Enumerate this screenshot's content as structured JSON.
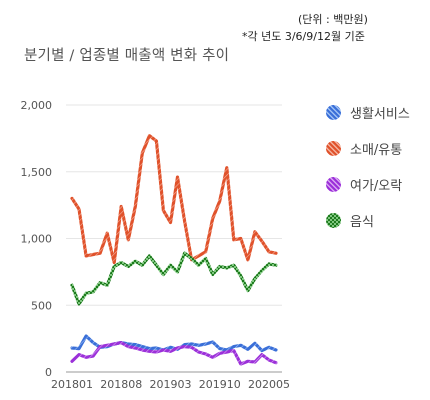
{
  "header": {
    "unit_note": "(단위 : 백만원)",
    "quarter_note": "*각 년도 3/6/9/12월 기준"
  },
  "chart_data": {
    "type": "line",
    "title": "분기별 / 업종별 매출액 변화 추이",
    "xlabel": "",
    "ylabel": "",
    "ylim": [
      0,
      2000
    ],
    "yticks": [
      0,
      500,
      1000,
      1500,
      2000
    ],
    "ytick_labels": [
      "0",
      "500",
      "1,000",
      "1,500",
      "2,000"
    ],
    "x_tick_labels": [
      "201801",
      "201808",
      "201903",
      "201910",
      "202005"
    ],
    "x_tick_index": [
      0,
      7,
      14,
      21,
      28
    ],
    "x_count": 30,
    "grid": true,
    "legend_position": "right",
    "series": [
      {
        "name": "생활서비스",
        "color": "#3a6fd8",
        "values": [
          180,
          175,
          270,
          220,
          185,
          190,
          210,
          220,
          210,
          205,
          190,
          175,
          180,
          165,
          185,
          170,
          205,
          210,
          200,
          210,
          225,
          175,
          165,
          190,
          200,
          170,
          215,
          160,
          185,
          165
        ]
      },
      {
        "name": "소매/유통",
        "color": "#e0522b",
        "values": [
          1300,
          1220,
          870,
          880,
          890,
          1040,
          820,
          1240,
          990,
          1240,
          1640,
          1770,
          1730,
          1210,
          1120,
          1460,
          1130,
          840,
          870,
          900,
          1150,
          1280,
          1530,
          990,
          1000,
          840,
          1050,
          980,
          900,
          890
        ]
      },
      {
        "name": "여가/오락",
        "color": "#9b30d9",
        "values": [
          80,
          130,
          110,
          120,
          190,
          200,
          210,
          220,
          190,
          180,
          165,
          155,
          150,
          165,
          155,
          180,
          190,
          185,
          150,
          135,
          110,
          140,
          150,
          160,
          60,
          80,
          75,
          130,
          90,
          70
        ]
      },
      {
        "name": "음식",
        "color": "#1e7a1e",
        "values": [
          650,
          510,
          590,
          600,
          670,
          650,
          790,
          820,
          790,
          830,
          800,
          870,
          800,
          730,
          800,
          750,
          890,
          850,
          800,
          850,
          730,
          790,
          780,
          800,
          720,
          610,
          700,
          760,
          810,
          800
        ]
      }
    ]
  }
}
